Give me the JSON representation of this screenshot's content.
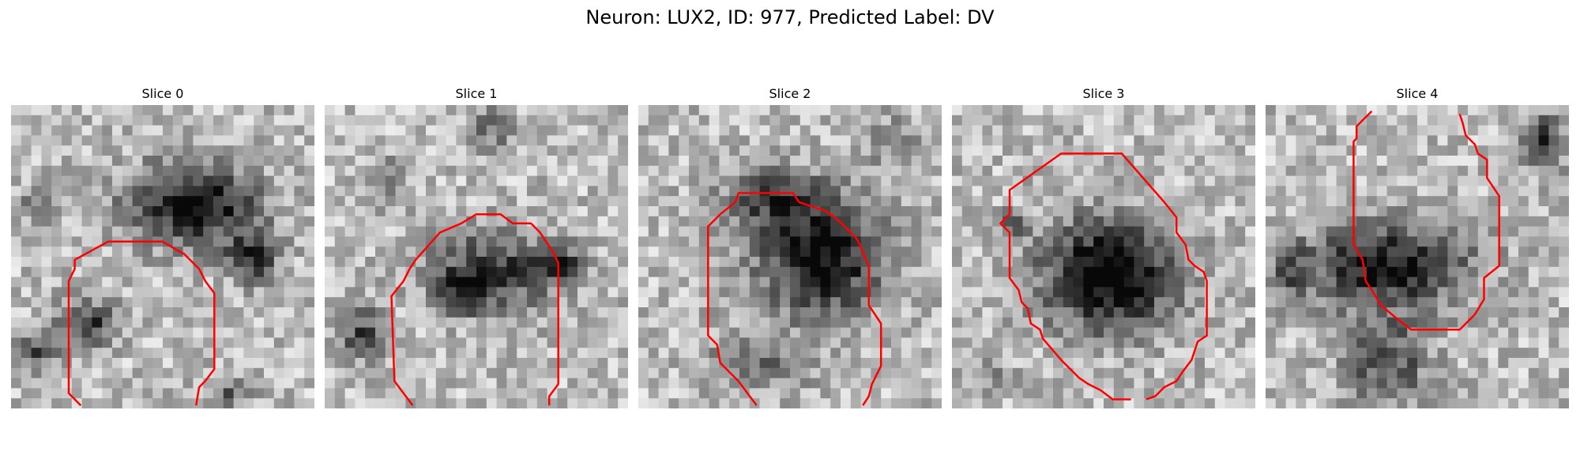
{
  "figure": {
    "title": "Neuron: LUX2, ID: 977, Predicted Label: DV"
  },
  "panels": [
    {
      "title": "Slice 0"
    },
    {
      "title": "Slice 1"
    },
    {
      "title": "Slice 2"
    },
    {
      "title": "Slice 3"
    },
    {
      "title": "Slice 4"
    }
  ],
  "colors": {
    "contour": "#ff0000",
    "colormap": "grayscale"
  }
}
